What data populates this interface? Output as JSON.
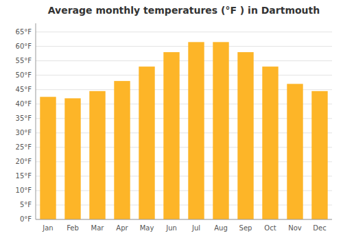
{
  "chart_data": {
    "type": "bar",
    "title": "Average monthly temperatures (°F ) in Dartmouth",
    "categories": [
      "Jan",
      "Feb",
      "Mar",
      "Apr",
      "May",
      "Jun",
      "Jul",
      "Aug",
      "Sep",
      "Oct",
      "Nov",
      "Dec"
    ],
    "values": [
      42.5,
      42.0,
      44.5,
      48.0,
      53.0,
      58.0,
      61.5,
      61.5,
      58.0,
      53.0,
      47.0,
      44.5
    ],
    "color": "#FDB528",
    "ylim": [
      0,
      68
    ],
    "yticks": [
      {
        "value": 0,
        "label": "0°F"
      },
      {
        "value": 5,
        "label": "5°F"
      },
      {
        "value": 10,
        "label": "10°F"
      },
      {
        "value": 15,
        "label": "15°F"
      },
      {
        "value": 20,
        "label": "20°F"
      },
      {
        "value": 25,
        "label": "25°F"
      },
      {
        "value": 30,
        "label": "30°F"
      },
      {
        "value": 35,
        "label": "35°F"
      },
      {
        "value": 40,
        "label": "40°F"
      },
      {
        "value": 45,
        "label": "45°F"
      },
      {
        "value": 50,
        "label": "50°F"
      },
      {
        "value": 55,
        "label": "55°F"
      },
      {
        "value": 60,
        "label": "60°F"
      },
      {
        "value": 65,
        "label": "65°F"
      }
    ],
    "grid": true
  }
}
